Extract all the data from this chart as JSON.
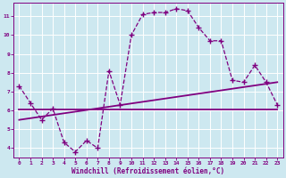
{
  "xlabel": "Windchill (Refroidissement éolien,°C)",
  "background_color": "#cde8f0",
  "grid_color": "#ffffff",
  "line_color": "#800080",
  "x_hours": [
    0,
    1,
    2,
    3,
    4,
    5,
    6,
    7,
    8,
    9,
    10,
    11,
    12,
    13,
    14,
    15,
    16,
    17,
    18,
    19,
    20,
    21,
    22,
    23
  ],
  "y_windchill": [
    7.3,
    6.4,
    5.5,
    6.1,
    4.3,
    3.8,
    4.4,
    4.0,
    8.1,
    6.3,
    10.0,
    11.1,
    11.2,
    11.2,
    11.4,
    11.3,
    10.4,
    9.7,
    9.7,
    7.6,
    7.5,
    8.4,
    7.5,
    6.3
  ],
  "trend1_start": 5.5,
  "trend1_end": 7.5,
  "trend2_y": 6.05,
  "xlim": [
    -0.5,
    23.5
  ],
  "ylim": [
    3.5,
    11.7
  ],
  "xticks": [
    0,
    1,
    2,
    3,
    4,
    5,
    6,
    7,
    8,
    9,
    10,
    11,
    12,
    13,
    14,
    15,
    16,
    17,
    18,
    19,
    20,
    21,
    22,
    23
  ],
  "yticks": [
    4,
    5,
    6,
    7,
    8,
    9,
    10,
    11
  ]
}
